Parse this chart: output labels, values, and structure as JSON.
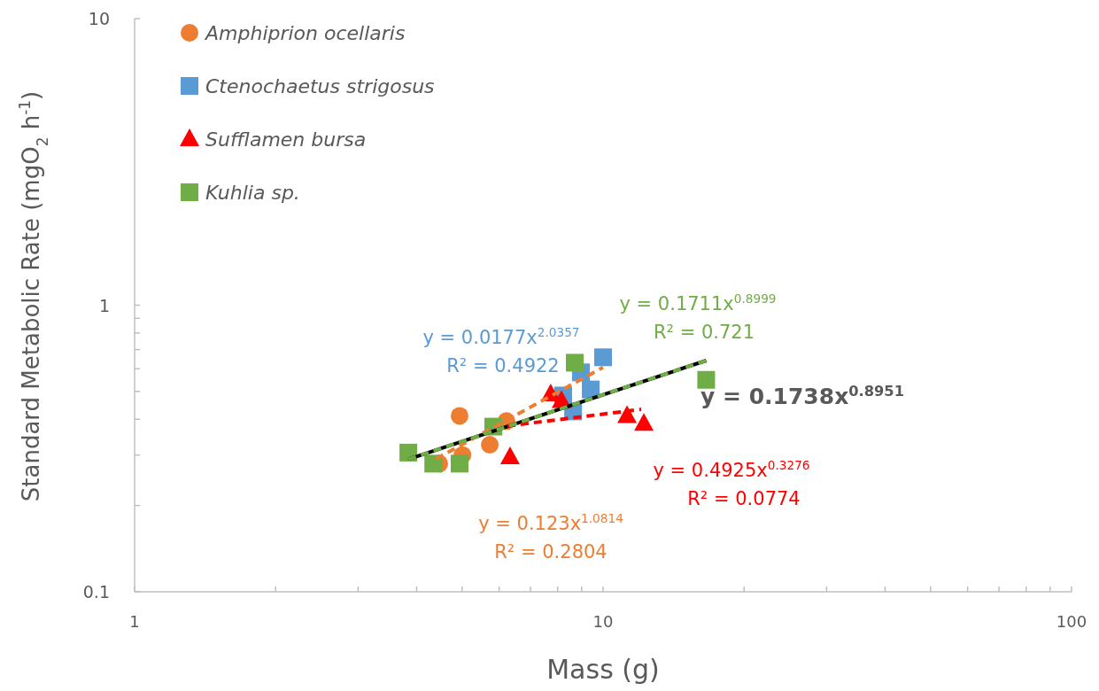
{
  "chart_data": {
    "type": "scatter",
    "xlabel": "Mass (g)",
    "ylabel": "Standard Metabolic Rate (mgO$_{2}$ h$^{-1}$)",
    "log": "xy",
    "grid": false,
    "legend": "top left",
    "xlim": [
      1,
      100
    ],
    "ylim": [
      0.1,
      10
    ],
    "xticks": [
      1,
      {
        "value": 2,
        "label": null
      },
      {
        "value": 3,
        "label": null
      },
      {
        "value": 4,
        "label": null
      },
      {
        "value": 5,
        "label": null
      },
      {
        "value": 6,
        "label": null
      },
      {
        "value": 7,
        "label": null
      },
      {
        "value": 8,
        "label": null
      },
      {
        "value": 9,
        "label": null
      },
      10,
      {
        "value": 20,
        "label": null
      },
      {
        "value": 30,
        "label": null
      },
      {
        "value": 40,
        "label": null
      },
      {
        "value": 50,
        "label": null
      },
      {
        "value": 60,
        "label": null
      },
      {
        "value": 70,
        "label": null
      },
      {
        "value": 80,
        "label": null
      },
      {
        "value": 90,
        "label": null
      },
      100
    ],
    "yticks": [
      0.1,
      {
        "value": 0.2,
        "label": null
      },
      {
        "value": 0.3,
        "label": null
      },
      {
        "value": 0.4,
        "label": null
      },
      {
        "value": 0.5,
        "label": null
      },
      {
        "value": 0.6,
        "label": null
      },
      {
        "value": 0.7,
        "label": null
      },
      {
        "value": 0.8,
        "label": null
      },
      {
        "value": 0.9,
        "label": null
      },
      1,
      10
    ],
    "series": [
      {
        "name": "Amphiprion ocellaris",
        "marker": "circle",
        "color": "#ed7d31",
        "x": [
          4.94,
          6.22,
          5.73,
          5.01,
          4.47
        ],
        "values": [
          0.411,
          0.394,
          0.326,
          0.3,
          0.28
        ]
      },
      {
        "name": "Ctenochaetus strigosus",
        "marker": "square",
        "color": "#5b9bd5",
        "x": [
          10.0,
          8.97,
          9.41,
          8.22,
          8.63
        ],
        "values": [
          0.658,
          0.583,
          0.508,
          0.484,
          0.426
        ]
      },
      {
        "name": "Sufflamen bursa",
        "marker": "triangle",
        "color": "#ff0000",
        "x": [
          7.73,
          8.15,
          11.25,
          12.22,
          6.33
        ],
        "values": [
          0.489,
          0.464,
          0.411,
          0.386,
          0.295
        ]
      },
      {
        "name": "Kuhlia sp.",
        "marker": "square",
        "color": "#70ad47",
        "x": [
          8.7,
          16.6,
          5.83,
          3.84,
          4.34,
          4.94
        ],
        "values": [
          0.63,
          0.549,
          0.377,
          0.306,
          0.28,
          0.28
        ]
      },
      {
        "type": "line",
        "marker": "none",
        "line_style": "solid",
        "color": "#000000",
        "x": [
          3.84,
          16.6
        ],
        "values": [
          0.29,
          0.641
        ]
      },
      {
        "type": "line",
        "marker": "none",
        "line_style": "dashed",
        "color": "#ed7d31",
        "x": [
          4.4,
          10.0
        ],
        "values": [
          0.291,
          0.607
        ]
      },
      {
        "type": "line",
        "marker": "none",
        "line_style": "dashed",
        "color": "#ff0000",
        "x": [
          6.25,
          12.06
        ],
        "values": [
          0.379,
          0.433
        ]
      },
      {
        "type": "line",
        "marker": "none",
        "line_style": "dashed",
        "color": "#70ad47",
        "x": [
          3.84,
          16.6
        ],
        "values": [
          0.29,
          0.641
        ]
      }
    ],
    "annotations": [
      "y = 0.123x$^{1.0814}$",
      "R² = 0.2804",
      "y = 0.0177x$^{2.0357}$",
      "R² = 0.4922",
      "y = 0.4925x$^{0.3276}$",
      "R² = 0.0774",
      "y = 0.1711x$^{0.8999}$",
      "R² = 0.721",
      "y = 0.1738x$^{0.8951}$"
    ]
  }
}
